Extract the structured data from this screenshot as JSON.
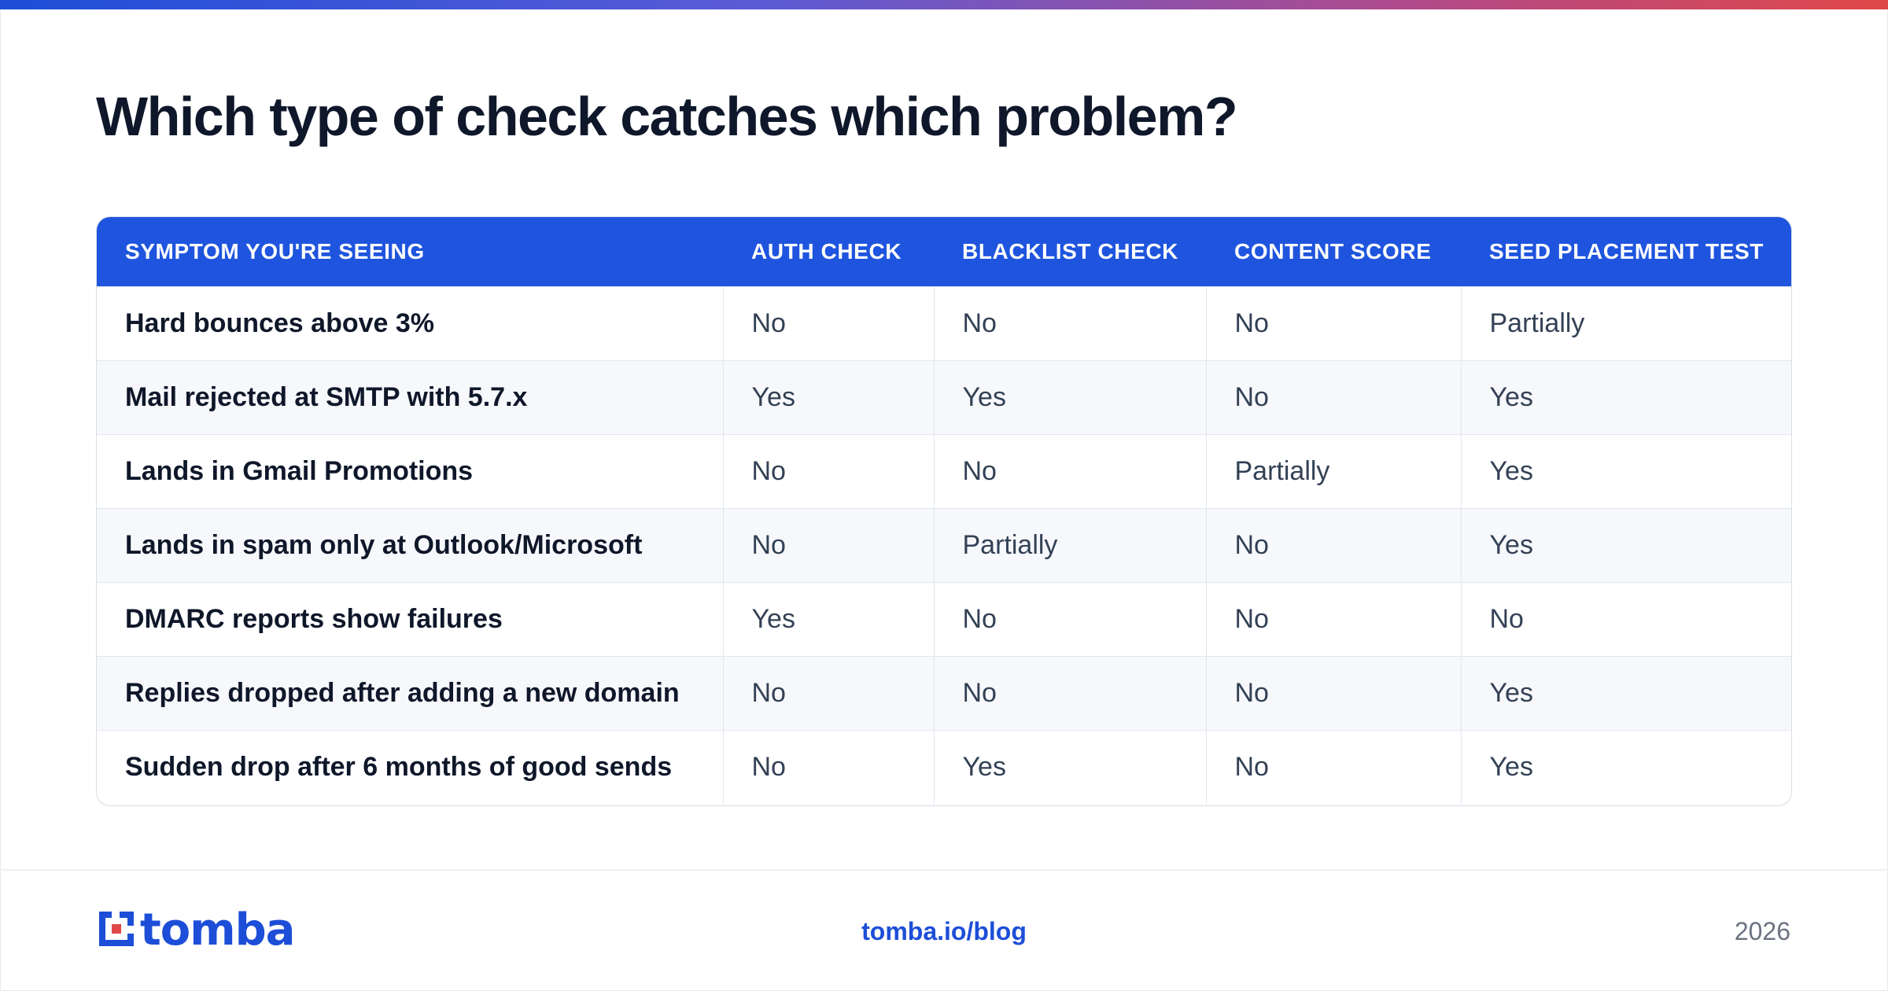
{
  "title": "Which type of check catches which problem?",
  "table": {
    "headers": [
      "SYMPTOM YOU'RE SEEING",
      "AUTH CHECK",
      "BLACKLIST CHECK",
      "CONTENT SCORE",
      "SEED PLACEMENT TEST"
    ],
    "rows": [
      [
        "Hard bounces above 3%",
        "No",
        "No",
        "No",
        "Partially"
      ],
      [
        "Mail rejected at SMTP with 5.7.x",
        "Yes",
        "Yes",
        "No",
        "Yes"
      ],
      [
        "Lands in Gmail Promotions",
        "No",
        "No",
        "Partially",
        "Yes"
      ],
      [
        "Lands in spam only at Outlook/Microsoft",
        "No",
        "Partially",
        "No",
        "Yes"
      ],
      [
        "DMARC reports show failures",
        "Yes",
        "No",
        "No",
        "No"
      ],
      [
        "Replies dropped after adding a new domain",
        "No",
        "No",
        "No",
        "Yes"
      ],
      [
        "Sudden drop after 6 months of good sends",
        "No",
        "Yes",
        "No",
        "Yes"
      ]
    ]
  },
  "footer": {
    "logo_text": "tomba",
    "logo_icon": "tomba-logo-icon",
    "link": "tomba.io/blog",
    "year": "2026"
  },
  "colors": {
    "header_bg": "#1f55de",
    "brand": "#1d4ed8",
    "gradient": [
      "#1d4ed8",
      "#b14a8a",
      "#e04848"
    ]
  }
}
